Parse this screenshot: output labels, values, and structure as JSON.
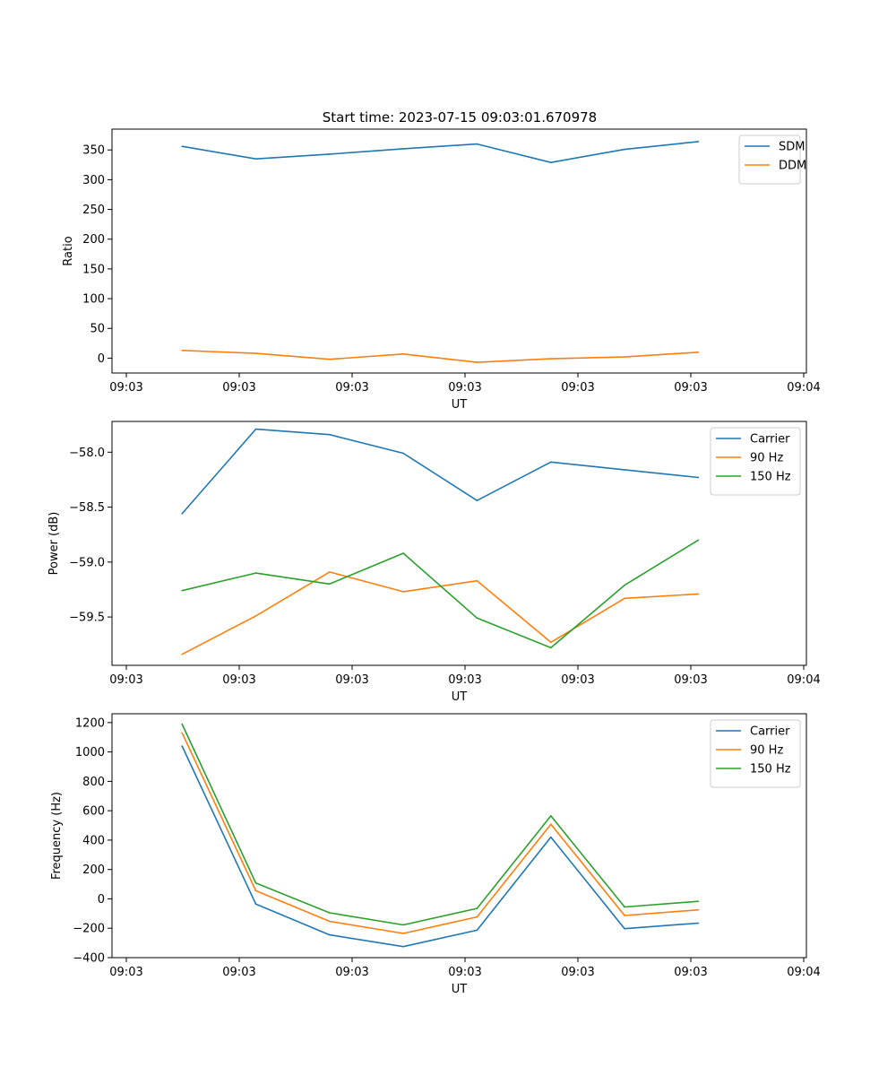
{
  "figure_title": "Start time: 2023-07-15 09:03:01.670978",
  "colors": {
    "blue": "#1f77b4",
    "orange": "#ff7f0e",
    "green": "#2ca02c"
  },
  "chart_data": [
    {
      "type": "line",
      "ylabel": "Ratio",
      "xlabel": "UT",
      "xlim": [
        0,
        9
      ],
      "ylim": [
        -25,
        385
      ],
      "x_ticks": [
        0,
        1.5,
        3,
        4.5,
        6,
        7.5,
        9
      ],
      "x_tick_labels": [
        "09:03",
        "09:03",
        "09:03",
        "09:03",
        "09:03",
        "09:03",
        "09:04"
      ],
      "y_ticks": [
        0,
        50,
        100,
        150,
        200,
        250,
        300,
        350
      ],
      "y_tick_labels": [
        "0",
        "50",
        "100",
        "150",
        "200",
        "250",
        "300",
        "350"
      ],
      "x": [
        0.74,
        1.72,
        2.7,
        3.68,
        4.66,
        5.64,
        6.62,
        7.6
      ],
      "legend_loc": "upper right",
      "series": [
        {
          "name": "SDM",
          "color": "#1f77b4",
          "values": [
            356,
            335,
            343,
            352,
            360,
            329,
            351,
            364
          ]
        },
        {
          "name": "DDM",
          "color": "#ff7f0e",
          "values": [
            13,
            8,
            -2,
            7,
            -7,
            -1,
            2,
            10
          ]
        }
      ]
    },
    {
      "type": "line",
      "ylabel": "Power (dB)",
      "xlabel": "UT",
      "xlim": [
        0,
        9
      ],
      "ylim": [
        -59.94,
        -57.72
      ],
      "x_ticks": [
        0,
        1.5,
        3,
        4.5,
        6,
        7.5,
        9
      ],
      "x_tick_labels": [
        "09:03",
        "09:03",
        "09:03",
        "09:03",
        "09:03",
        "09:03",
        "09:04"
      ],
      "y_ticks": [
        -59.5,
        -59.0,
        -58.5,
        -58.0
      ],
      "y_tick_labels": [
        "−59.5",
        "−59.0",
        "−58.5",
        "−58.0"
      ],
      "x": [
        0.74,
        1.72,
        2.7,
        3.68,
        4.66,
        5.64,
        6.62,
        7.6
      ],
      "legend_loc": "upper right",
      "series": [
        {
          "name": "Carrier",
          "color": "#1f77b4",
          "values": [
            -58.56,
            -57.79,
            -57.84,
            -58.01,
            -58.44,
            -58.09,
            -58.16,
            -58.23
          ]
        },
        {
          "name": "90 Hz",
          "color": "#ff7f0e",
          "values": [
            -59.84,
            -59.49,
            -59.09,
            -59.27,
            -59.17,
            -59.73,
            -59.33,
            -59.29
          ]
        },
        {
          "name": "150 Hz",
          "color": "#2ca02c",
          "values": [
            -59.26,
            -59.1,
            -59.2,
            -58.92,
            -59.51,
            -59.78,
            -59.21,
            -58.8
          ]
        }
      ]
    },
    {
      "type": "line",
      "ylabel": "Frequency (Hz)",
      "xlabel": "UT",
      "xlim": [
        0,
        9
      ],
      "ylim": [
        -400,
        1260
      ],
      "x_ticks": [
        0,
        1.5,
        3,
        4.5,
        6,
        7.5,
        9
      ],
      "x_tick_labels": [
        "09:03",
        "09:03",
        "09:03",
        "09:03",
        "09:03",
        "09:03",
        "09:04"
      ],
      "y_ticks": [
        -400,
        -200,
        0,
        200,
        400,
        600,
        800,
        1000,
        1200
      ],
      "y_tick_labels": [
        "−400",
        "−200",
        "0",
        "200",
        "400",
        "600",
        "800",
        "1000",
        "1200"
      ],
      "x": [
        0.74,
        1.72,
        2.7,
        3.68,
        4.66,
        5.64,
        6.62,
        7.6
      ],
      "legend_loc": "upper right",
      "series": [
        {
          "name": "Carrier",
          "color": "#1f77b4",
          "values": [
            1040,
            -35,
            -245,
            -325,
            -213,
            420,
            -203,
            -165
          ]
        },
        {
          "name": "90 Hz",
          "color": "#ff7f0e",
          "values": [
            1130,
            55,
            -153,
            -235,
            -123,
            508,
            -113,
            -75
          ]
        },
        {
          "name": "150 Hz",
          "color": "#2ca02c",
          "values": [
            1190,
            108,
            -95,
            -177,
            -65,
            565,
            -55,
            -17
          ]
        }
      ]
    }
  ]
}
